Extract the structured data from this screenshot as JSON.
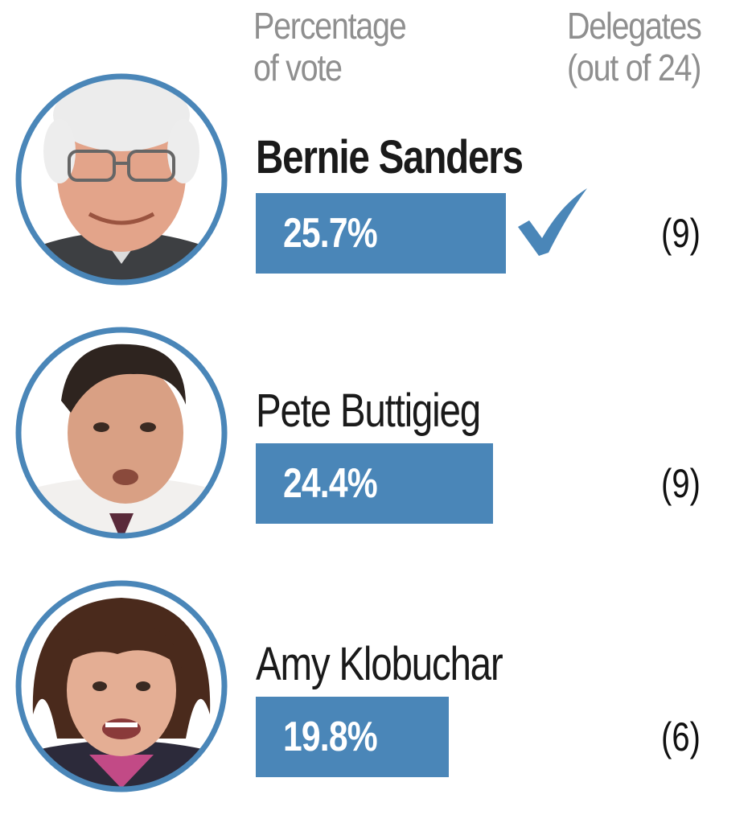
{
  "header": {
    "pct_line1": "Percentage",
    "pct_line2": "of vote",
    "del_line1": "Delegates",
    "del_line2": "(out of 24)"
  },
  "colors": {
    "bar": "#4a86b8",
    "ring": "#4a86b8",
    "check": "#4a86b8"
  },
  "chart_data": {
    "type": "bar",
    "categories": [
      "Bernie Sanders",
      "Pete Buttigieg",
      "Amy Klobuchar"
    ],
    "values": [
      25.7,
      24.4,
      19.8
    ],
    "value_labels": [
      "25.7%",
      "24.4%",
      "19.8%"
    ],
    "delegates": [
      "(9)",
      "(9)",
      "(6)"
    ],
    "winner": "Bernie Sanders",
    "delegates_total": 24
  },
  "candidates": [
    {
      "name": "Bernie Sanders",
      "pct_label": "25.7%",
      "delegates": "(9)",
      "winner": true
    },
    {
      "name": "Pete Buttigieg",
      "pct_label": "24.4%",
      "delegates": "(9)",
      "winner": false
    },
    {
      "name": "Amy Klobuchar",
      "pct_label": "19.8%",
      "delegates": "(6)",
      "winner": false
    }
  ]
}
